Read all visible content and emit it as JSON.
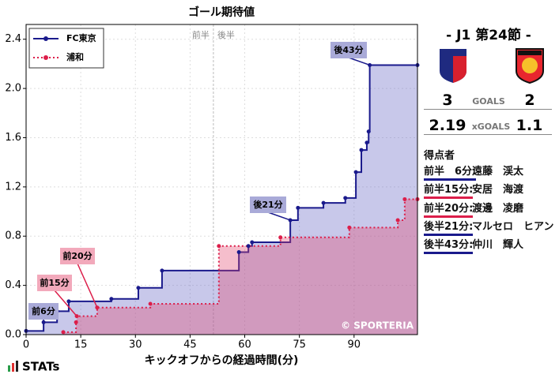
{
  "chart_data": {
    "type": "step",
    "title": "ゴール期待値",
    "xlabel": "キックオフからの経過時間(分)",
    "xlim": [
      0,
      107.4
    ],
    "ylim": [
      0,
      2.52
    ],
    "xticks": [
      0,
      15,
      30,
      45,
      60,
      75,
      90
    ],
    "yticks": [
      {
        "value": 0,
        "label": "0.0"
      },
      0.4,
      0.8,
      1.2,
      1.6,
      {
        "value": 2,
        "label": "2.0"
      },
      2.4
    ],
    "grid": true,
    "legend": "upper left",
    "halftime": {
      "x": 51.4,
      "labels": [
        "前半",
        "後半"
      ]
    },
    "series": [
      {
        "name": "FC東京",
        "color": "#1a1a8c",
        "fill": "rgba(110,110,200,0.38)",
        "x": [
          0,
          4.8,
          8.5,
          11.7,
          23.4,
          30.8,
          37.3,
          58.4,
          61.0,
          62.0,
          72.5,
          74.6,
          81.6,
          87.6,
          90.5,
          92.0,
          93.5,
          94.0,
          94.3,
          107.4
        ],
        "values": [
          0.03,
          0.1,
          0.19,
          0.27,
          0.29,
          0.38,
          0.52,
          0.67,
          0.72,
          0.75,
          0.93,
          1.03,
          1.07,
          1.11,
          1.32,
          1.5,
          1.56,
          1.65,
          2.19,
          2.19
        ]
      },
      {
        "name": "浦和",
        "color": "#dc1e4a",
        "fill": "rgba(225,70,110,0.35)",
        "x": [
          10.2,
          13.7,
          13.9,
          19.5,
          34.1,
          52.9,
          69.8,
          88.7,
          102.0,
          103.9,
          107.4
        ],
        "values": [
          0.02,
          0.1,
          0.15,
          0.22,
          0.25,
          0.72,
          0.79,
          0.87,
          0.93,
          1.1,
          1.1
        ]
      }
    ],
    "annotations": [
      {
        "text": "後43分"
      },
      {
        "text": "後21分"
      },
      {
        "text": "前20分"
      },
      {
        "text": "前15分"
      },
      {
        "text": "前6分"
      }
    ],
    "credit": "© SPORTERIA"
  },
  "brand": "STATs",
  "match": {
    "round": "- J1 第24節 -",
    "home_goals": "3",
    "goals_label": "GOALS",
    "away_goals": "2",
    "home_xg": "2.19",
    "xg_label": "xGOALS",
    "away_xg": "1.1",
    "scorers_title": "得点者",
    "scorers": [
      {
        "time": "前半　6分:",
        "name": "遠藤　渓太",
        "color": "#1a1a8c"
      },
      {
        "time": "前半15分:",
        "name": "安居　海渡",
        "color": "#dc1e4a"
      },
      {
        "time": "前半20分:",
        "name": "渡邊　凌磨",
        "color": "#dc1e4a"
      },
      {
        "time": "後半21分:",
        "name": "マルセロ　ヒアン",
        "color": "#1a1a8c"
      },
      {
        "time": "後半43分:",
        "name": "仲川　輝人",
        "color": "#1a1a8c"
      }
    ]
  }
}
